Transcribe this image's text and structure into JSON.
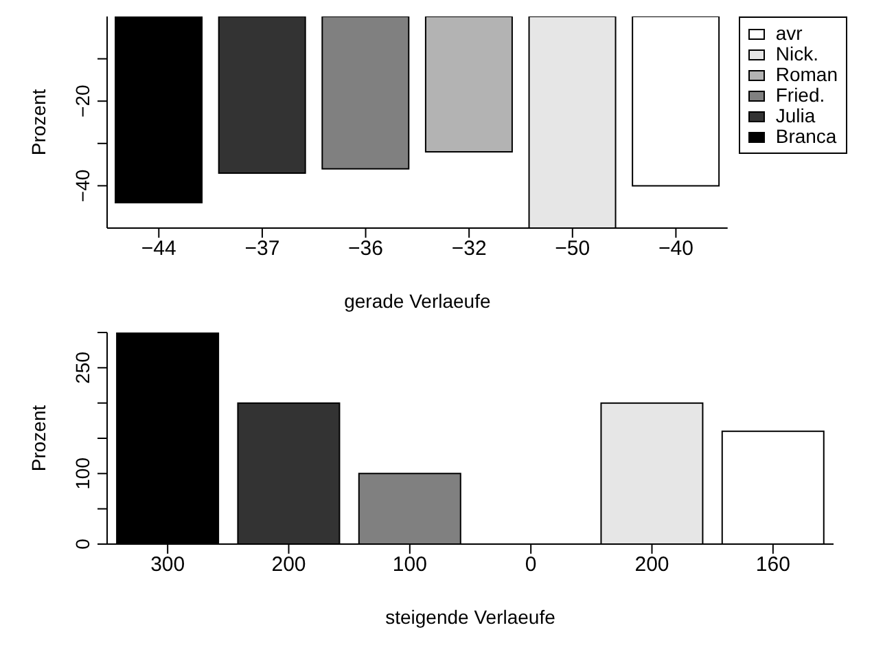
{
  "chart_data": [
    {
      "type": "bar",
      "categories": [
        "−44",
        "−37",
        "−36",
        "−32",
        "−50",
        "−40"
      ],
      "xlabel": "gerade Verlaeufe",
      "ylabel": "Prozent",
      "stacked": true,
      "legend": "right",
      "ylim": [
        -50,
        0
      ],
      "yticks": [
        {
          "value": -10,
          "label": null
        },
        {
          "value": -20,
          "label": "−20"
        },
        {
          "value": -30,
          "label": null
        },
        {
          "value": -40,
          "label": "−40"
        }
      ],
      "series": [
        {
          "name": "avr",
          "color": "#ffffff",
          "values": [
            null,
            null,
            null,
            null,
            null,
            -40
          ]
        },
        {
          "name": "Nick.",
          "color": "#e6e6e6",
          "values": [
            null,
            null,
            null,
            null,
            -50,
            null
          ]
        },
        {
          "name": "Roman",
          "color": "#b3b3b3",
          "values": [
            null,
            null,
            null,
            -32,
            null,
            null
          ]
        },
        {
          "name": "Fried.",
          "color": "#808080",
          "values": [
            null,
            null,
            -36,
            null,
            null,
            null
          ]
        },
        {
          "name": "Julia",
          "color": "#333333",
          "values": [
            null,
            -37,
            null,
            null,
            null,
            null
          ]
        },
        {
          "name": "Branca",
          "color": "#000000",
          "values": [
            -44,
            null,
            null,
            null,
            null,
            null
          ]
        }
      ]
    },
    {
      "type": "bar",
      "categories": [
        "300",
        "200",
        "100",
        "0",
        "200",
        "160"
      ],
      "xlabel": "steigende Verlaeufe",
      "ylabel": "Prozent",
      "values": [
        300,
        200,
        100,
        0,
        200,
        160
      ],
      "colors": [
        "#000000",
        "#333333",
        "#808080",
        "#b3b3b3",
        "#e6e6e6",
        "#ffffff"
      ],
      "ylim": [
        0,
        300
      ],
      "yticks": [
        0,
        {
          "value": 50,
          "label": null
        },
        100,
        {
          "value": 150,
          "label": null
        },
        {
          "value": 200,
          "label": null
        },
        250,
        {
          "value": 300,
          "label": null
        }
      ]
    }
  ]
}
